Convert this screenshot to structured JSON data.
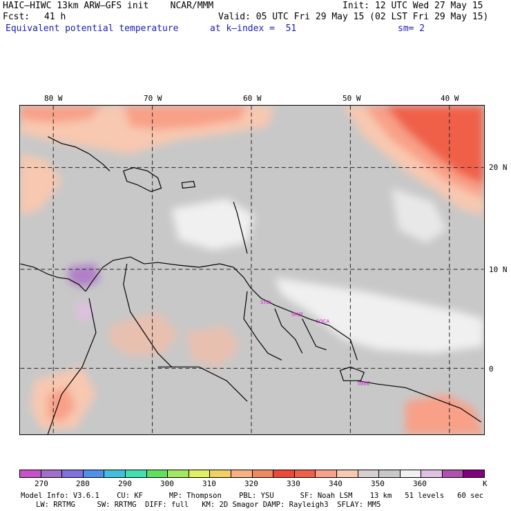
{
  "header": {
    "model": "HAIC–HIWC 13km ARW–GFS init    NCAR/MMM",
    "init": "Init: 12 UTC Wed 27 May 15",
    "fcst_label": "Fcst:",
    "fcst_value": "41 h",
    "valid": "Valid: 05 UTC Fri 29 May 15 (02 LST Fri 29 May 15)",
    "field": "Equivalent potential temperature",
    "level": "at k–index =  51",
    "smoothing": "sm= 2"
  },
  "axes": {
    "lon_labels": [
      "80 W",
      "70 W",
      "60 W",
      "50 W",
      "40 W"
    ],
    "lat_labels": [
      "20 N",
      "10 N",
      "0"
    ]
  },
  "stations": [
    "SYBI",
    "SMJP",
    "SOCA",
    "SBBE"
  ],
  "colorbar": {
    "colors": [
      "#c850c8",
      "#a070c8",
      "#8070e0",
      "#5090e8",
      "#40c0e0",
      "#40e0b0",
      "#60e060",
      "#a0e860",
      "#e0f060",
      "#f0d060",
      "#f8b080",
      "#f08860",
      "#f04838",
      "#f06048",
      "#f8a088",
      "#f8c8b0",
      "#d8d0d0",
      "#c8c8c8",
      "#f0f0f0",
      "#e0c0e0",
      "#b050b0",
      "#800080"
    ],
    "ticks": [
      "270",
      "280",
      "290",
      "300",
      "310",
      "320",
      "330",
      "340",
      "350",
      "360"
    ],
    "unit": "K"
  },
  "footer": {
    "line1": "Model Info: V3.6.1    CU: KF      MP: Thompson    PBL: YSU      SF: Noah LSM    13 km   51 levels   60 sec",
    "line2": "LW: RRTMG     SW: RRTMG  DIFF: full   KM: 2D Smagor DAMP: Rayleigh3  SFLAY: MM5"
  }
}
